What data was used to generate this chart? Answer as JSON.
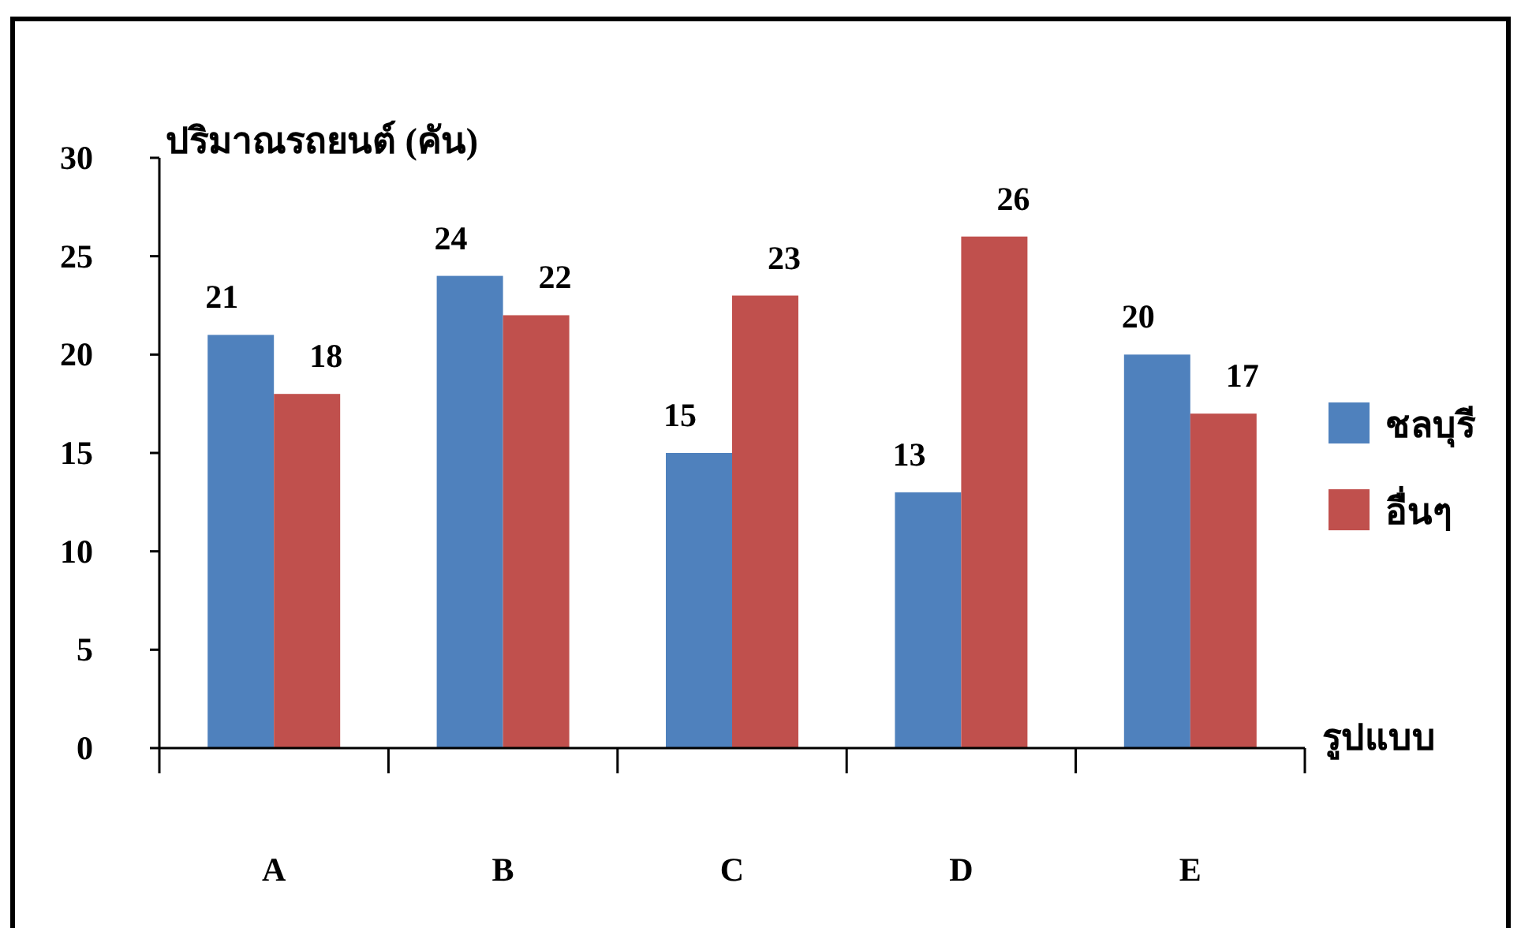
{
  "chart_data": {
    "type": "bar",
    "ylabel": "ปริมาณรถยนต์ (คัน)",
    "xlabel": "รูปแบบ",
    "categories": [
      "A",
      "B",
      "C",
      "D",
      "E"
    ],
    "series": [
      {
        "name": "ชลบุรี",
        "color": "#4f81bd",
        "values": [
          21,
          24,
          15,
          13,
          20
        ]
      },
      {
        "name": "อื่นๆ",
        "color": "#c0504d",
        "values": [
          18,
          22,
          23,
          26,
          17
        ]
      }
    ],
    "ylim": [
      0,
      30
    ],
    "yticks": [
      0,
      5,
      10,
      15,
      20,
      25,
      30
    ],
    "legend": "right",
    "data_labels": true
  }
}
